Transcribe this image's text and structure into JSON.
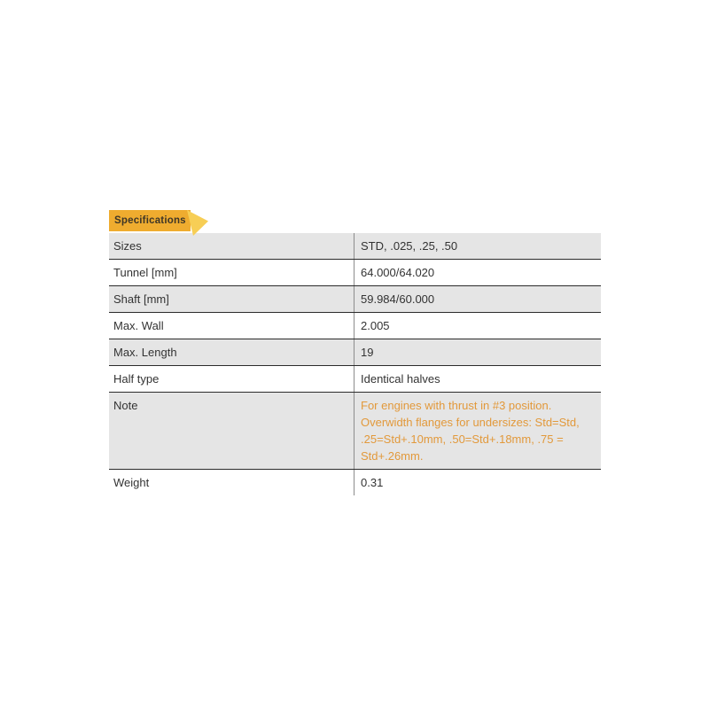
{
  "banner": {
    "label": "Specifications"
  },
  "table": {
    "rows": [
      {
        "label": "Sizes",
        "value": "STD, .025, .25, .50"
      },
      {
        "label": "Tunnel [mm]",
        "value": "64.000/64.020"
      },
      {
        "label": "Shaft [mm]",
        "value": "59.984/60.000"
      },
      {
        "label": "Max. Wall",
        "value": "2.005"
      },
      {
        "label": "Max. Length",
        "value": "19"
      },
      {
        "label": "Half type",
        "value": "Identical halves"
      },
      {
        "label": "Note",
        "value": "For engines with thrust in #3 position. Overwidth flanges for undersizes: Std=Std, .25=Std+.10mm, .50=Std+.18mm, .75 = Std+.26mm.",
        "highlight": true
      },
      {
        "label": "Weight",
        "value": "0.31"
      }
    ]
  },
  "colors": {
    "banner_bg": "#EFAC2F",
    "banner_arrow": "#F7CE55",
    "banner_text": "#3E3627",
    "row_shaded_bg": "#E5E5E5",
    "row_plain_bg": "#FFFFFF",
    "row_border": "#2B2B2B",
    "column_divider": "#8C8C8C",
    "text": "#333333",
    "note_text": "#E2993B"
  }
}
